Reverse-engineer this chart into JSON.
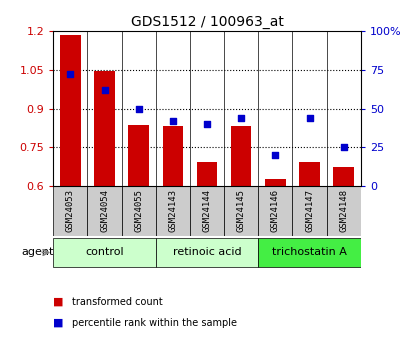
{
  "title": "GDS1512 / 100963_at",
  "samples": [
    "GSM24053",
    "GSM24054",
    "GSM24055",
    "GSM24143",
    "GSM24144",
    "GSM24145",
    "GSM24146",
    "GSM24147",
    "GSM24148"
  ],
  "transformed_counts": [
    1.185,
    1.045,
    0.835,
    0.832,
    0.695,
    0.832,
    0.628,
    0.695,
    0.672
  ],
  "percentile_ranks": [
    72,
    62,
    50,
    42,
    40,
    44,
    20,
    44,
    25
  ],
  "groups": [
    {
      "label": "control",
      "start": 0,
      "end": 2,
      "color": "#ccffcc"
    },
    {
      "label": "retinoic acid",
      "start": 3,
      "end": 5,
      "color": "#ccffcc"
    },
    {
      "label": "trichostatin A",
      "start": 6,
      "end": 8,
      "color": "#44ee44"
    }
  ],
  "ylim_left": [
    0.6,
    1.2
  ],
  "ylim_right": [
    0,
    100
  ],
  "yticks_left": [
    0.6,
    0.75,
    0.9,
    1.05,
    1.2
  ],
  "yticks_right": [
    0,
    25,
    50,
    75,
    100
  ],
  "ytick_labels_right": [
    "0",
    "25",
    "50",
    "75",
    "100%"
  ],
  "bar_color": "#cc0000",
  "dot_color": "#0000cc",
  "bar_width": 0.6,
  "bg_color_plot": "#ffffff",
  "sample_box_color": "#cccccc",
  "tick_label_color_left": "#cc0000",
  "tick_label_color_right": "#0000cc",
  "legend_items": [
    {
      "color": "#cc0000",
      "label": "transformed count"
    },
    {
      "color": "#0000cc",
      "label": "percentile rank within the sample"
    }
  ],
  "gridline_yticks": [
    0.75,
    0.9,
    1.05
  ]
}
